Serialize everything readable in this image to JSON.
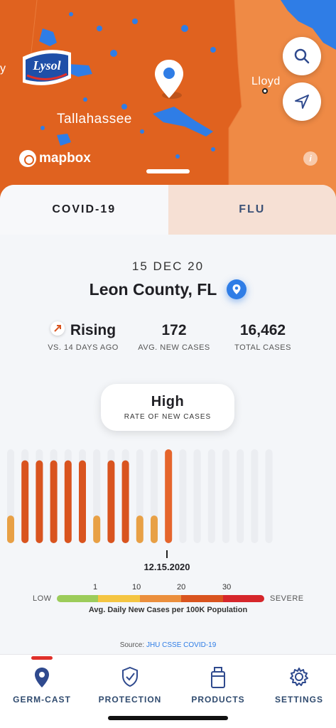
{
  "map": {
    "city_tallahassee": "Tallahassee",
    "city_lloyd": "Lloyd",
    "city_partial": "y",
    "brand": "Lysol",
    "attribution": "mapbox",
    "info_label": "i"
  },
  "tabs": [
    {
      "label": "COVID-19",
      "active": true
    },
    {
      "label": "FLU",
      "active": false
    }
  ],
  "summary": {
    "date": "15 DEC 20",
    "location": "Leon County, FL"
  },
  "stats": {
    "trend": {
      "value": "Rising",
      "label": "VS. 14 DAYS AGO"
    },
    "avg_new": {
      "value": "172",
      "label": "AVG. NEW CASES"
    },
    "total": {
      "value": "16,462",
      "label": "TOTAL CASES"
    }
  },
  "risk": {
    "level": "High",
    "label": "RATE OF NEW CASES"
  },
  "selected_date": "12.15.2020",
  "legend": {
    "low": "LOW",
    "high": "SEVERE",
    "ticks": [
      "1",
      "10",
      "20",
      "30"
    ],
    "colors": [
      "#9ccc5a",
      "#f4c542",
      "#eb8f3d",
      "#d9541f",
      "#d6262b"
    ],
    "caption": "Avg. Daily New Cases per 100K Population"
  },
  "chart_data": {
    "type": "bar",
    "levels": [
      1,
      3,
      3,
      3,
      3,
      3,
      1,
      3,
      3,
      1,
      1,
      3.4,
      null,
      null,
      null,
      null,
      null,
      null,
      null
    ],
    "level_colors": {
      "1": "#e8a045",
      "3": "#d9541f"
    },
    "selected_index": 11
  },
  "source": {
    "prefix": "Source:",
    "link": "JHU CSSE COVID-19"
  },
  "nav": [
    {
      "label": "GERM-CAST",
      "icon": "map-pin-icon",
      "active": true
    },
    {
      "label": "PROTECTION",
      "icon": "shield-check-icon",
      "active": false
    },
    {
      "label": "PRODUCTS",
      "icon": "bottle-icon",
      "active": false
    },
    {
      "label": "SETTINGS",
      "icon": "gear-icon",
      "active": false
    }
  ]
}
